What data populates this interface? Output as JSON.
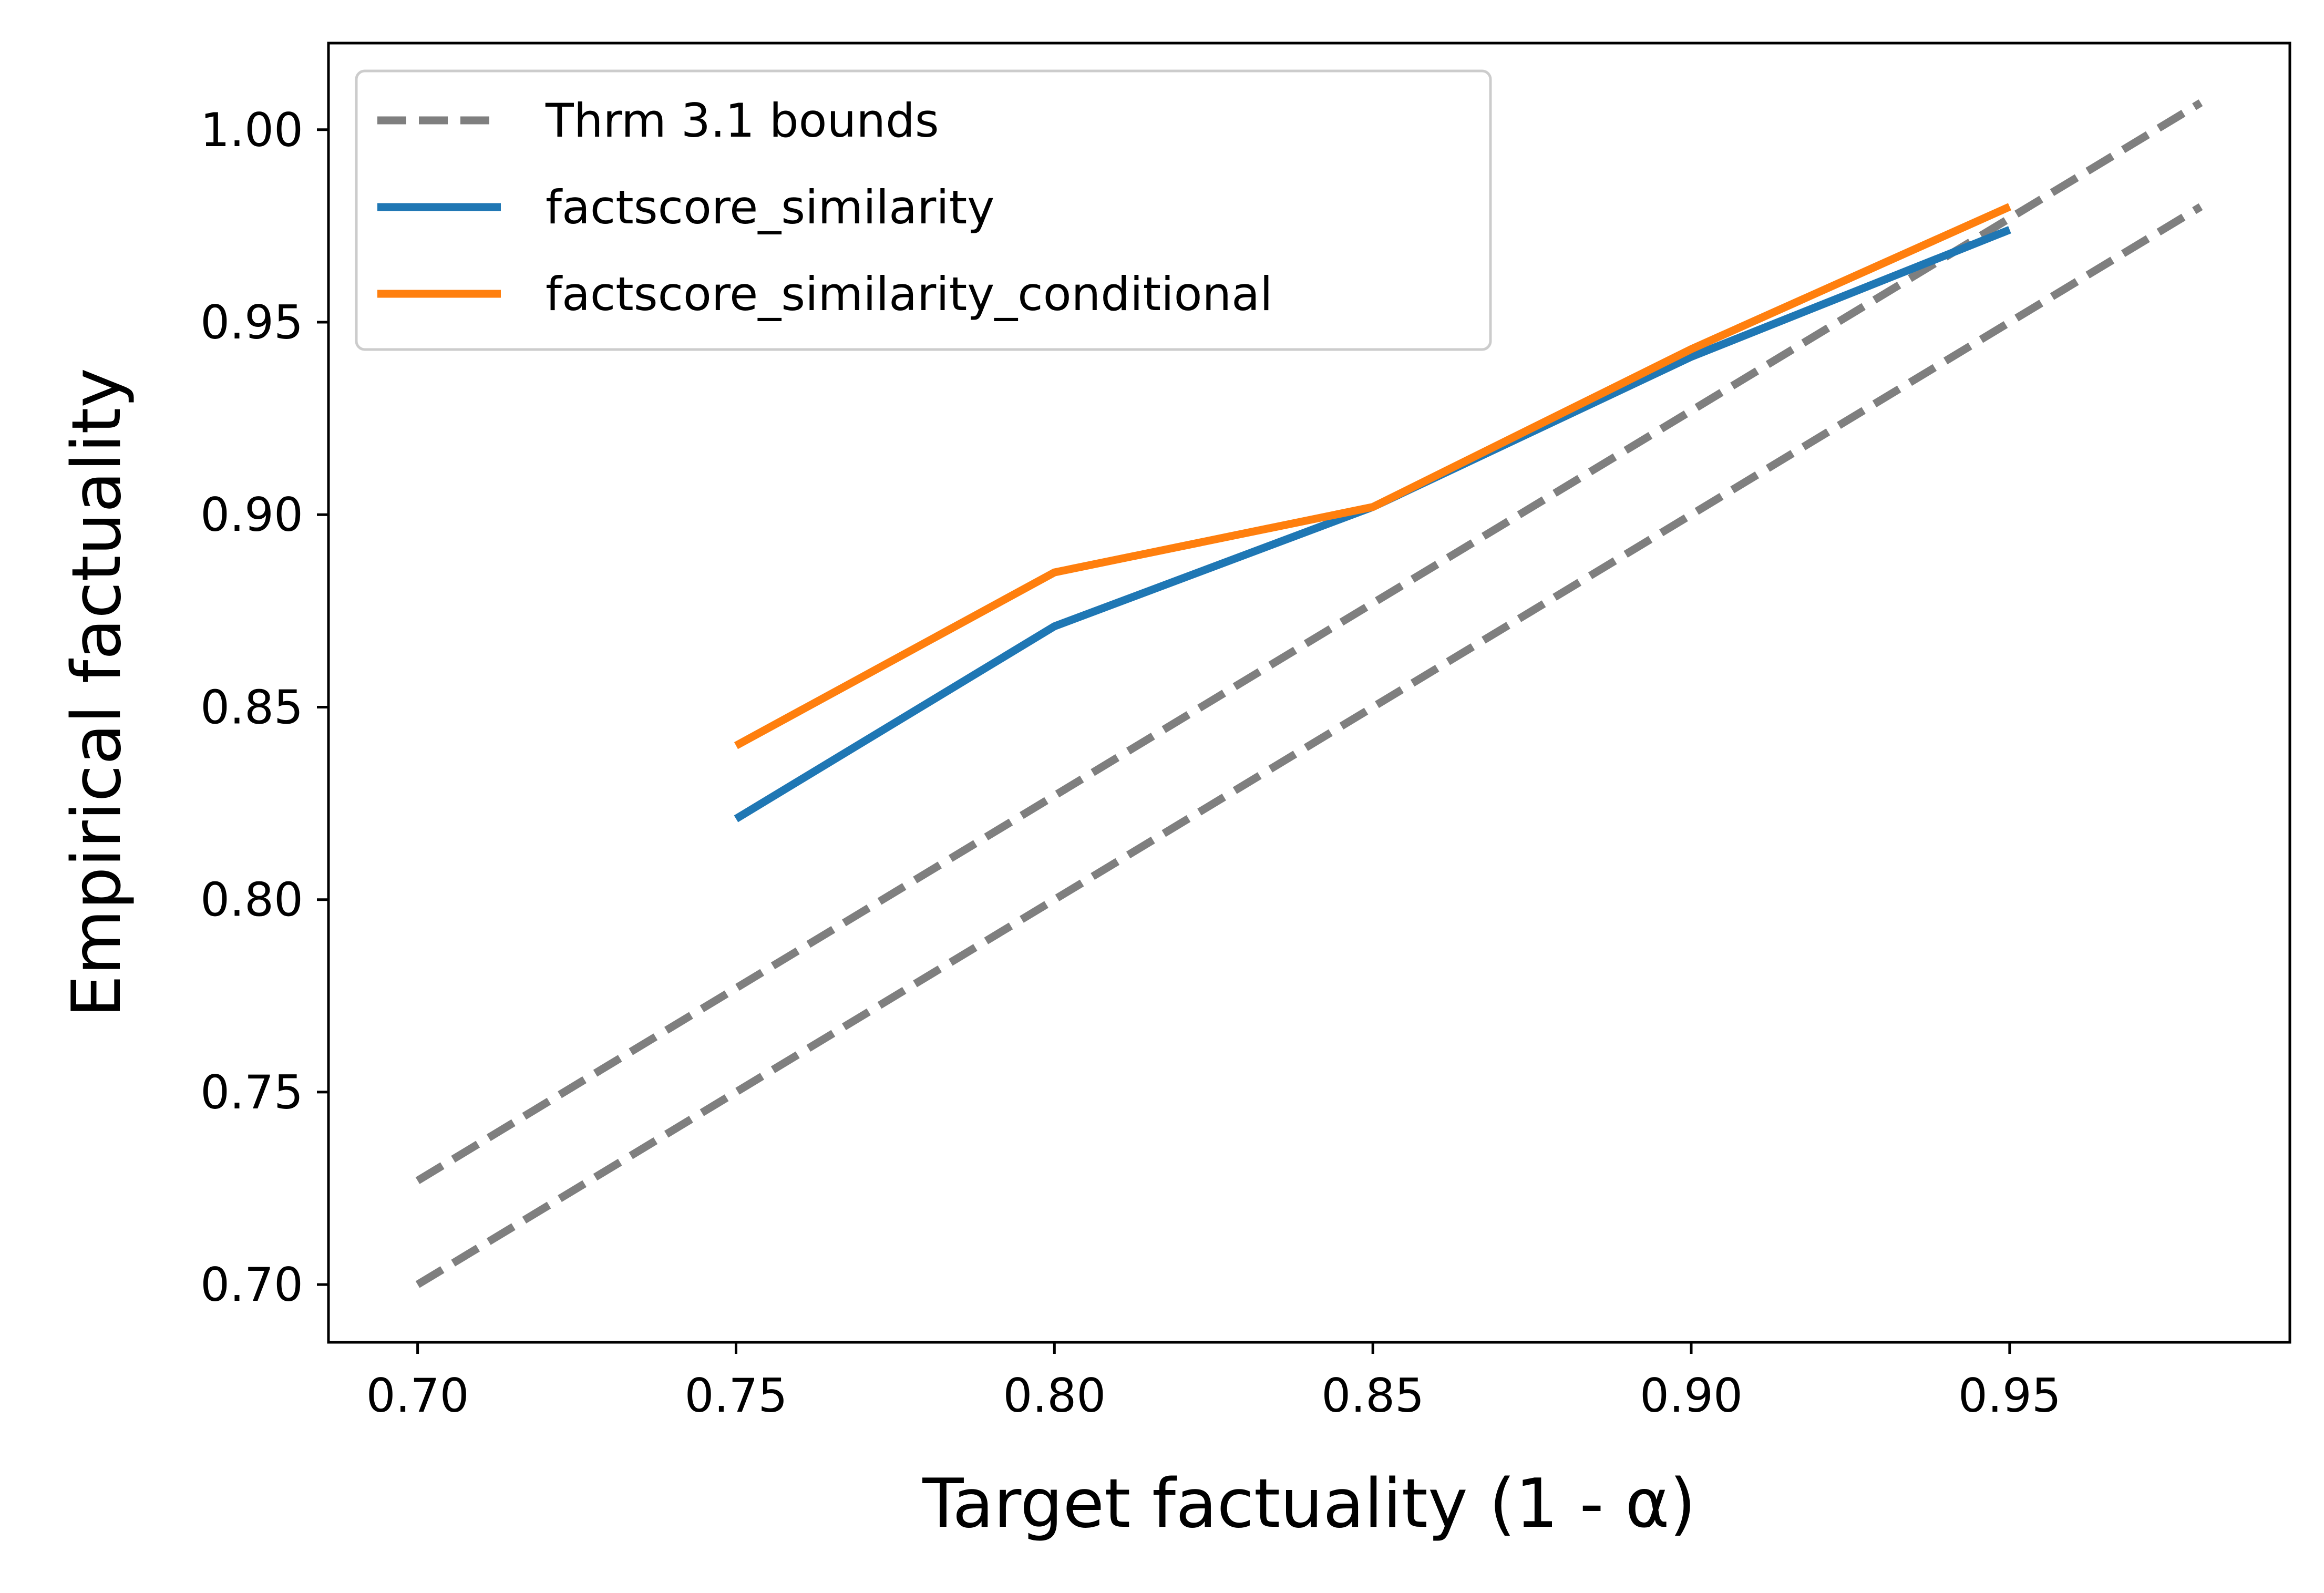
{
  "chart_data": {
    "type": "line",
    "title": "",
    "xlabel": "Target factuality (1 - α)",
    "ylabel": "Empirical factuality",
    "xlim": [
      0.686,
      0.994
    ],
    "ylim": [
      0.685,
      1.0225
    ],
    "xticks": [
      "0.70",
      "0.75",
      "0.80",
      "0.85",
      "0.90",
      "0.95"
    ],
    "yticks": [
      "0.70",
      "0.75",
      "0.80",
      "0.85",
      "0.90",
      "0.95",
      "1.00"
    ],
    "grid": false,
    "legend_position": "top-left",
    "series": [
      {
        "name": "Thrm 3.1 bounds",
        "style": "dashed",
        "color": "#7f7f7f",
        "x": [
          0.7,
          0.98
        ],
        "y": [
          0.7,
          0.98
        ]
      },
      {
        "name": "",
        "style": "dashed",
        "color": "#7f7f7f",
        "x": [
          0.7,
          0.98
        ],
        "y": [
          0.727,
          1.007
        ]
      },
      {
        "name": "factscore_similarity",
        "style": "solid",
        "color": "#1f77b4",
        "x": [
          0.75,
          0.8,
          0.85,
          0.9,
          0.95
        ],
        "y": [
          0.821,
          0.871,
          0.902,
          0.941,
          0.974
        ]
      },
      {
        "name": "factscore_similarity_conditional",
        "style": "solid",
        "color": "#ff7f0e",
        "x": [
          0.75,
          0.8,
          0.85,
          0.9,
          0.95
        ],
        "y": [
          0.84,
          0.885,
          0.902,
          0.943,
          0.98
        ]
      }
    ]
  }
}
